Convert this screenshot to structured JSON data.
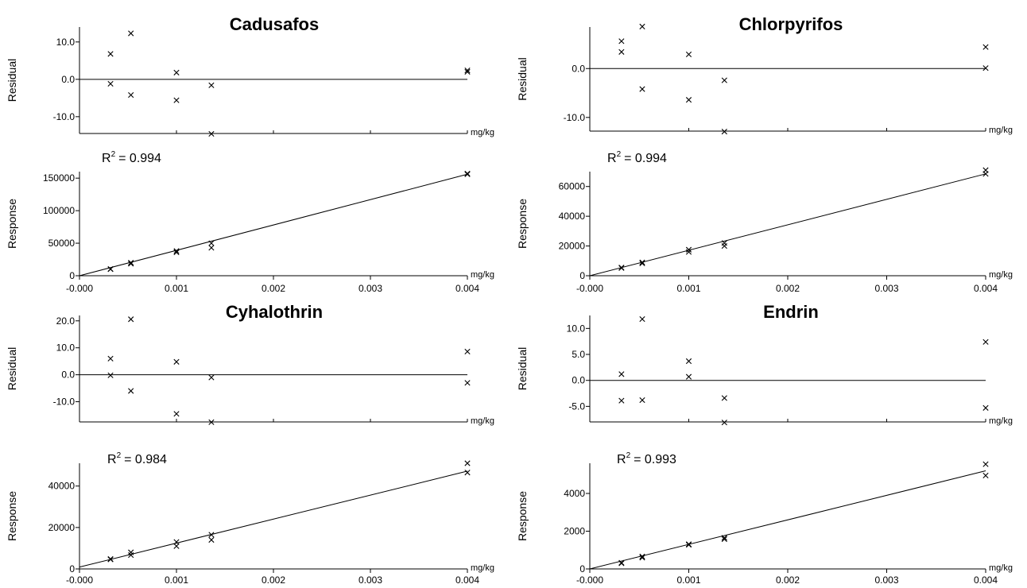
{
  "chart_data": [
    {
      "title": "Cadusafos",
      "r_squared_label": "= 0.994",
      "residual": {
        "type": "scatter",
        "ylabel": "Residual",
        "unit_label": "mg/kg",
        "yticks": [
          "10.0",
          "0.0",
          "-10.0"
        ],
        "ytick_values": [
          10,
          0,
          -10
        ],
        "xlim": [
          0,
          0.004
        ],
        "ylim": [
          -14.5,
          14
        ],
        "x": [
          0.00032,
          0.00032,
          0.00053,
          0.00053,
          0.001,
          0.001,
          0.00136,
          0.00136,
          0.004,
          0.004
        ],
        "y": [
          6.8,
          -1.2,
          12.3,
          -4.2,
          1.8,
          -5.6,
          -1.6,
          -14.6,
          2.0,
          2.4
        ]
      },
      "calibration": {
        "type": "scatter",
        "ylabel": "Response",
        "unit_label": "mg/kg",
        "xticks": [
          "-0.000",
          "0.001",
          "0.002",
          "0.003",
          "0.004"
        ],
        "xtick_values": [
          0,
          0.001,
          0.002,
          0.003,
          0.004
        ],
        "yticks": [
          "150000",
          "100000",
          "50000",
          "0"
        ],
        "ytick_values": [
          150000,
          100000,
          50000,
          0
        ],
        "xlim": [
          0,
          0.004
        ],
        "ylim": [
          0,
          160000
        ],
        "x": [
          0.00032,
          0.00032,
          0.00053,
          0.00053,
          0.001,
          0.001,
          0.00136,
          0.00136,
          0.004,
          0.004
        ],
        "y": [
          10500,
          10000,
          20000,
          18500,
          38000,
          36000,
          50000,
          43000,
          157000,
          156000
        ],
        "fit_line": {
          "x": [
            0,
            0.004
          ],
          "y": [
            0,
            156000
          ]
        }
      }
    },
    {
      "title": "Chlorpyrifos",
      "r_squared_label": "= 0.994",
      "residual": {
        "type": "scatter",
        "ylabel": "Residual",
        "unit_label": "mg/kg",
        "yticks": [
          "0.0",
          "-10.0"
        ],
        "ytick_values": [
          0,
          -10
        ],
        "xlim": [
          0,
          0.004
        ],
        "ylim": [
          -12.8,
          8.5
        ],
        "x": [
          0.00032,
          0.00032,
          0.00053,
          0.00053,
          0.001,
          0.001,
          0.00136,
          0.00136,
          0.004,
          0.004
        ],
        "y": [
          5.6,
          3.4,
          8.6,
          -4.2,
          2.9,
          -6.4,
          -2.4,
          -12.9,
          4.4,
          0.1
        ]
      },
      "calibration": {
        "type": "scatter",
        "ylabel": "Response",
        "unit_label": "mg/kg",
        "xticks": [
          "-0.000",
          "0.001",
          "0.002",
          "0.003",
          "0.004"
        ],
        "xtick_values": [
          0,
          0.001,
          0.002,
          0.003,
          0.004
        ],
        "yticks": [
          "60000",
          "40000",
          "20000",
          "0"
        ],
        "ytick_values": [
          60000,
          40000,
          20000,
          0
        ],
        "xlim": [
          0,
          0.004
        ],
        "ylim": [
          0,
          70000
        ],
        "x": [
          0.00032,
          0.00032,
          0.00053,
          0.00053,
          0.001,
          0.001,
          0.00136,
          0.00136,
          0.004,
          0.004
        ],
        "y": [
          5500,
          5200,
          9000,
          8300,
          17500,
          16000,
          22000,
          20000,
          71000,
          68500
        ],
        "fit_line": {
          "x": [
            0,
            0.004
          ],
          "y": [
            0,
            68500
          ]
        }
      }
    },
    {
      "title": "Cyhalothrin",
      "r_squared_label": "= 0.984",
      "residual": {
        "type": "scatter",
        "ylabel": "Residual",
        "unit_label": "mg/kg",
        "yticks": [
          "20.0",
          "10.0",
          "0.0",
          "-10.0"
        ],
        "ytick_values": [
          20,
          10,
          0,
          -10
        ],
        "xlim": [
          0,
          0.004
        ],
        "ylim": [
          -17.5,
          22
        ],
        "x": [
          0.00032,
          0.00032,
          0.00053,
          0.00053,
          0.001,
          0.001,
          0.00136,
          0.00136,
          0.004,
          0.004
        ],
        "y": [
          6.0,
          -0.2,
          20.6,
          -6.0,
          4.8,
          -14.5,
          -1.0,
          -17.6,
          8.6,
          -3.0
        ]
      },
      "calibration": {
        "type": "scatter",
        "ylabel": "Response",
        "unit_label": "mg/kg",
        "xticks": [
          "-0.000",
          "0.001",
          "0.002",
          "0.003",
          "0.004"
        ],
        "xtick_values": [
          0,
          0.001,
          0.002,
          0.003,
          0.004
        ],
        "yticks": [
          "40000",
          "20000",
          "0"
        ],
        "ytick_values": [
          40000,
          20000,
          0
        ],
        "xlim": [
          0,
          0.004
        ],
        "ylim": [
          0,
          51000
        ],
        "x": [
          0.00032,
          0.00032,
          0.00053,
          0.00053,
          0.001,
          0.001,
          0.00136,
          0.00136,
          0.004,
          0.004
        ],
        "y": [
          4800,
          4600,
          8000,
          6700,
          13000,
          11000,
          16500,
          14000,
          51000,
          46500
        ],
        "fit_line": {
          "x": [
            0,
            0.004
          ],
          "y": [
            900,
            47200
          ]
        }
      }
    },
    {
      "title": "Endrin",
      "r_squared_label": "= 0.993",
      "residual": {
        "type": "scatter",
        "ylabel": "Residual",
        "unit_label": "mg/kg",
        "yticks": [
          "10.0",
          "5.0",
          "0.0",
          "-5.0"
        ],
        "ytick_values": [
          10,
          5,
          0,
          -5
        ],
        "xlim": [
          0,
          0.004
        ],
        "ylim": [
          -8,
          12.5
        ],
        "x": [
          0.00032,
          0.00032,
          0.00053,
          0.00053,
          0.001,
          0.001,
          0.00136,
          0.00136,
          0.004,
          0.004
        ],
        "y": [
          1.2,
          -3.9,
          11.8,
          -3.8,
          3.7,
          0.7,
          -3.4,
          -8.1,
          7.4,
          -5.3
        ]
      },
      "calibration": {
        "type": "scatter",
        "ylabel": "Response",
        "unit_label": "mg/kg",
        "xticks": [
          "-0.000",
          "0.001",
          "0.002",
          "0.003",
          "0.004"
        ],
        "xtick_values": [
          0,
          0.001,
          0.002,
          0.003,
          0.004
        ],
        "yticks": [
          "4000",
          "2000",
          "0"
        ],
        "ytick_values": [
          4000,
          2000,
          0
        ],
        "xlim": [
          0,
          0.004
        ],
        "ylim": [
          0,
          5600
        ],
        "x": [
          0.00032,
          0.00032,
          0.00053,
          0.00053,
          0.001,
          0.001,
          0.00136,
          0.00136,
          0.004,
          0.004
        ],
        "y": [
          330,
          300,
          660,
          600,
          1310,
          1280,
          1650,
          1580,
          5550,
          4950
        ],
        "fit_line": {
          "x": [
            0,
            0.004
          ],
          "y": [
            0,
            5200
          ]
        }
      }
    }
  ]
}
